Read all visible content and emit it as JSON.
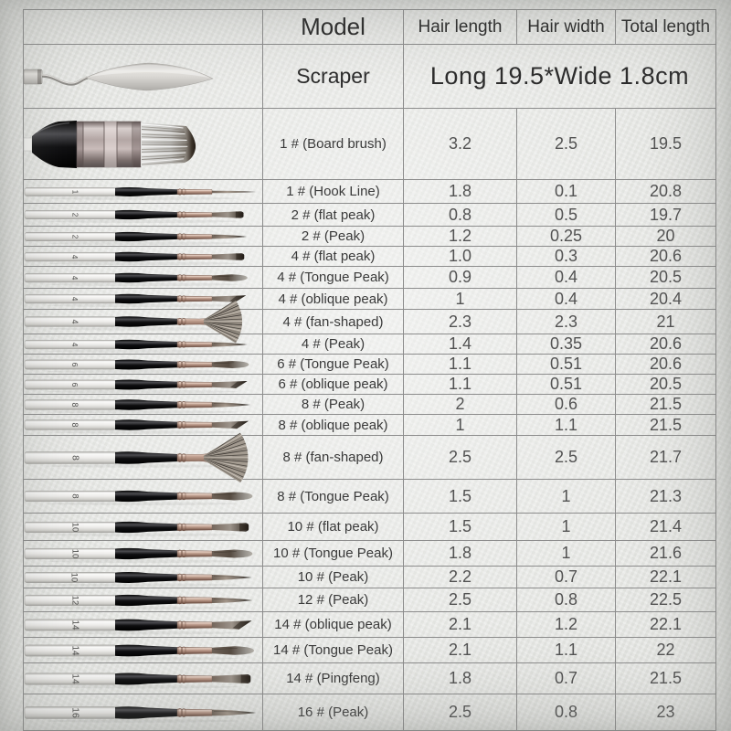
{
  "table": {
    "columns": [
      "Model",
      "Hair length",
      "Hair width",
      "Total length"
    ],
    "scraper": {
      "model": "Scraper",
      "spec": "Long 19.5*Wide 1.8cm",
      "image": "palette-knife"
    },
    "rows": [
      {
        "model": "1 # (Board brush)",
        "hair_length": "3.2",
        "hair_width": "2.5",
        "total_length": "19.5",
        "brush": {
          "type": "board",
          "handle_number": ""
        }
      },
      {
        "model": "1 # (Hook Line)",
        "hair_length": "1.8",
        "hair_width": "0.1",
        "total_length": "20.8",
        "brush": {
          "type": "liner",
          "handle_number": "1"
        }
      },
      {
        "model": "2 # (flat peak)",
        "hair_length": "0.8",
        "hair_width": "0.5",
        "total_length": "19.7",
        "brush": {
          "type": "flat",
          "handle_number": "2"
        }
      },
      {
        "model": "2 # (Peak)",
        "hair_length": "1.2",
        "hair_width": "0.25",
        "total_length": "20",
        "brush": {
          "type": "round",
          "handle_number": "2"
        }
      },
      {
        "model": "4 # (flat peak)",
        "hair_length": "1.0",
        "hair_width": "0.3",
        "total_length": "20.6",
        "brush": {
          "type": "flat",
          "handle_number": "4"
        }
      },
      {
        "model": "4 # (Tongue Peak)",
        "hair_length": "0.9",
        "hair_width": "0.4",
        "total_length": "20.5",
        "brush": {
          "type": "filbert",
          "handle_number": "4"
        }
      },
      {
        "model": "4 # (oblique peak)",
        "hair_length": "1",
        "hair_width": "0.4",
        "total_length": "20.4",
        "brush": {
          "type": "angle",
          "handle_number": "4"
        }
      },
      {
        "model": "4 # (fan-shaped)",
        "hair_length": "2.3",
        "hair_width": "2.3",
        "total_length": "21",
        "brush": {
          "type": "fan",
          "handle_number": "4"
        }
      },
      {
        "model": "4 # (Peak)",
        "hair_length": "1.4",
        "hair_width": "0.35",
        "total_length": "20.6",
        "brush": {
          "type": "round",
          "handle_number": "4"
        }
      },
      {
        "model": "6 # (Tongue Peak)",
        "hair_length": "1.1",
        "hair_width": "0.51",
        "total_length": "20.6",
        "brush": {
          "type": "filbert",
          "handle_number": "6"
        }
      },
      {
        "model": "6 # (oblique peak)",
        "hair_length": "1.1",
        "hair_width": "0.51",
        "total_length": "20.5",
        "brush": {
          "type": "angle",
          "handle_number": "6"
        }
      },
      {
        "model": "8 # (Peak)",
        "hair_length": "2",
        "hair_width": "0.6",
        "total_length": "21.5",
        "brush": {
          "type": "round",
          "handle_number": "8"
        }
      },
      {
        "model": "8 # (oblique peak)",
        "hair_length": "1",
        "hair_width": "1.1",
        "total_length": "21.5",
        "brush": {
          "type": "angle",
          "handle_number": "8"
        }
      },
      {
        "model": "8 # (fan-shaped)",
        "hair_length": "2.5",
        "hair_width": "2.5",
        "total_length": "21.7",
        "brush": {
          "type": "fan",
          "handle_number": "8"
        }
      },
      {
        "model": "8 # (Tongue Peak)",
        "hair_length": "1.5",
        "hair_width": "1",
        "total_length": "21.3",
        "brush": {
          "type": "filbert",
          "handle_number": "8"
        }
      },
      {
        "model": "10 # (flat peak)",
        "hair_length": "1.5",
        "hair_width": "1",
        "total_length": "21.4",
        "brush": {
          "type": "flat",
          "handle_number": "10"
        }
      },
      {
        "model": "10 # (Tongue Peak)",
        "hair_length": "1.8",
        "hair_width": "1",
        "total_length": "21.6",
        "brush": {
          "type": "filbert",
          "handle_number": "10"
        }
      },
      {
        "model": "10 # (Peak)",
        "hair_length": "2.2",
        "hair_width": "0.7",
        "total_length": "22.1",
        "brush": {
          "type": "round",
          "handle_number": "10"
        }
      },
      {
        "model": "12 # (Peak)",
        "hair_length": "2.5",
        "hair_width": "0.8",
        "total_length": "22.5",
        "brush": {
          "type": "round",
          "handle_number": "12"
        }
      },
      {
        "model": "14 # (oblique peak)",
        "hair_length": "2.1",
        "hair_width": "1.2",
        "total_length": "22.1",
        "brush": {
          "type": "angle",
          "handle_number": "14"
        }
      },
      {
        "model": "14 # (Tongue Peak)",
        "hair_length": "2.1",
        "hair_width": "1.1",
        "total_length": "22",
        "brush": {
          "type": "filbert",
          "handle_number": "14"
        }
      },
      {
        "model": "14 # (Pingfeng)",
        "hair_length": "1.8",
        "hair_width": "0.7",
        "total_length": "21.5",
        "brush": {
          "type": "flat",
          "handle_number": "14"
        }
      },
      {
        "model": "16 # (Peak)",
        "hair_length": "2.5",
        "hair_width": "0.8",
        "total_length": "23",
        "brush": {
          "type": "round",
          "handle_number": "16"
        }
      }
    ]
  },
  "colors": {
    "background": "#eaebe8",
    "table_border": "#8c8c8c",
    "text": "#3a3a3a",
    "number_text": "#525252",
    "ferrule_rose_gold": "#b28d7d",
    "handle_silver": "#efeeec",
    "handle_black": "#141414",
    "bristle_taupe": "#9a8c80",
    "bristle_dark": "#35302b"
  }
}
